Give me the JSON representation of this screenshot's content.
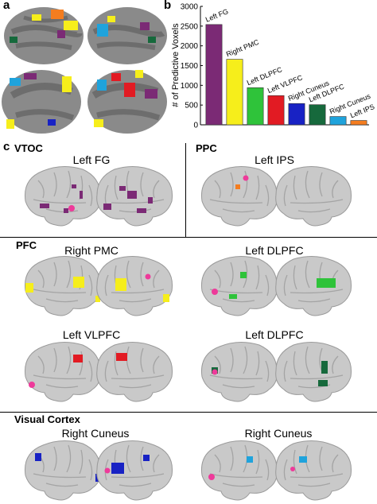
{
  "panels": {
    "a": "a",
    "b": "b",
    "c": "c"
  },
  "chart_data": {
    "type": "bar",
    "ylabel": "# of Predictive Voxels",
    "ylim": [
      0,
      3000
    ],
    "yticks": [
      0,
      500,
      1000,
      1500,
      2000,
      2500,
      3000
    ],
    "categories": [
      "Left FG",
      "Right PMC",
      "Left DLPFC",
      "Left VLPFC",
      "Right Cuneus",
      "Left DLPFC",
      "Right Cuneus",
      "Left IPS"
    ],
    "values": [
      2540,
      1660,
      940,
      740,
      540,
      510,
      210,
      110
    ],
    "colors": [
      "#7b2a75",
      "#f6ee1b",
      "#2fc33a",
      "#e21b23",
      "#1822c4",
      "#16693c",
      "#1fa3dc",
      "#f47d20"
    ]
  },
  "sections": {
    "vtoc": "VTOC",
    "ppc": "PPC",
    "pfc": "PFC",
    "visual": "Visual Cortex"
  },
  "regions": {
    "left_fg": "Left FG",
    "left_ips": "Left IPS",
    "right_pmc": "Right PMC",
    "left_dlpfc_1": "Left DLPFC",
    "left_vlpfc": "Left VLPFC",
    "left_dlpfc_2": "Left DLPFC",
    "right_cuneus_1": "Right Cuneus",
    "right_cuneus_2": "Right Cuneus"
  },
  "blob_colors": {
    "left_fg": "#7b2a75",
    "left_ips": "#f47d20",
    "right_pmc": "#f6ee1b",
    "left_dlpfc": "#2fc33a",
    "left_vlpfc": "#e21b23",
    "left_dlpfc_dark": "#16693c",
    "right_cuneus_blue": "#1822c4",
    "right_cuneus_cyan": "#1fa3dc",
    "marker": "#ee3a9a"
  }
}
